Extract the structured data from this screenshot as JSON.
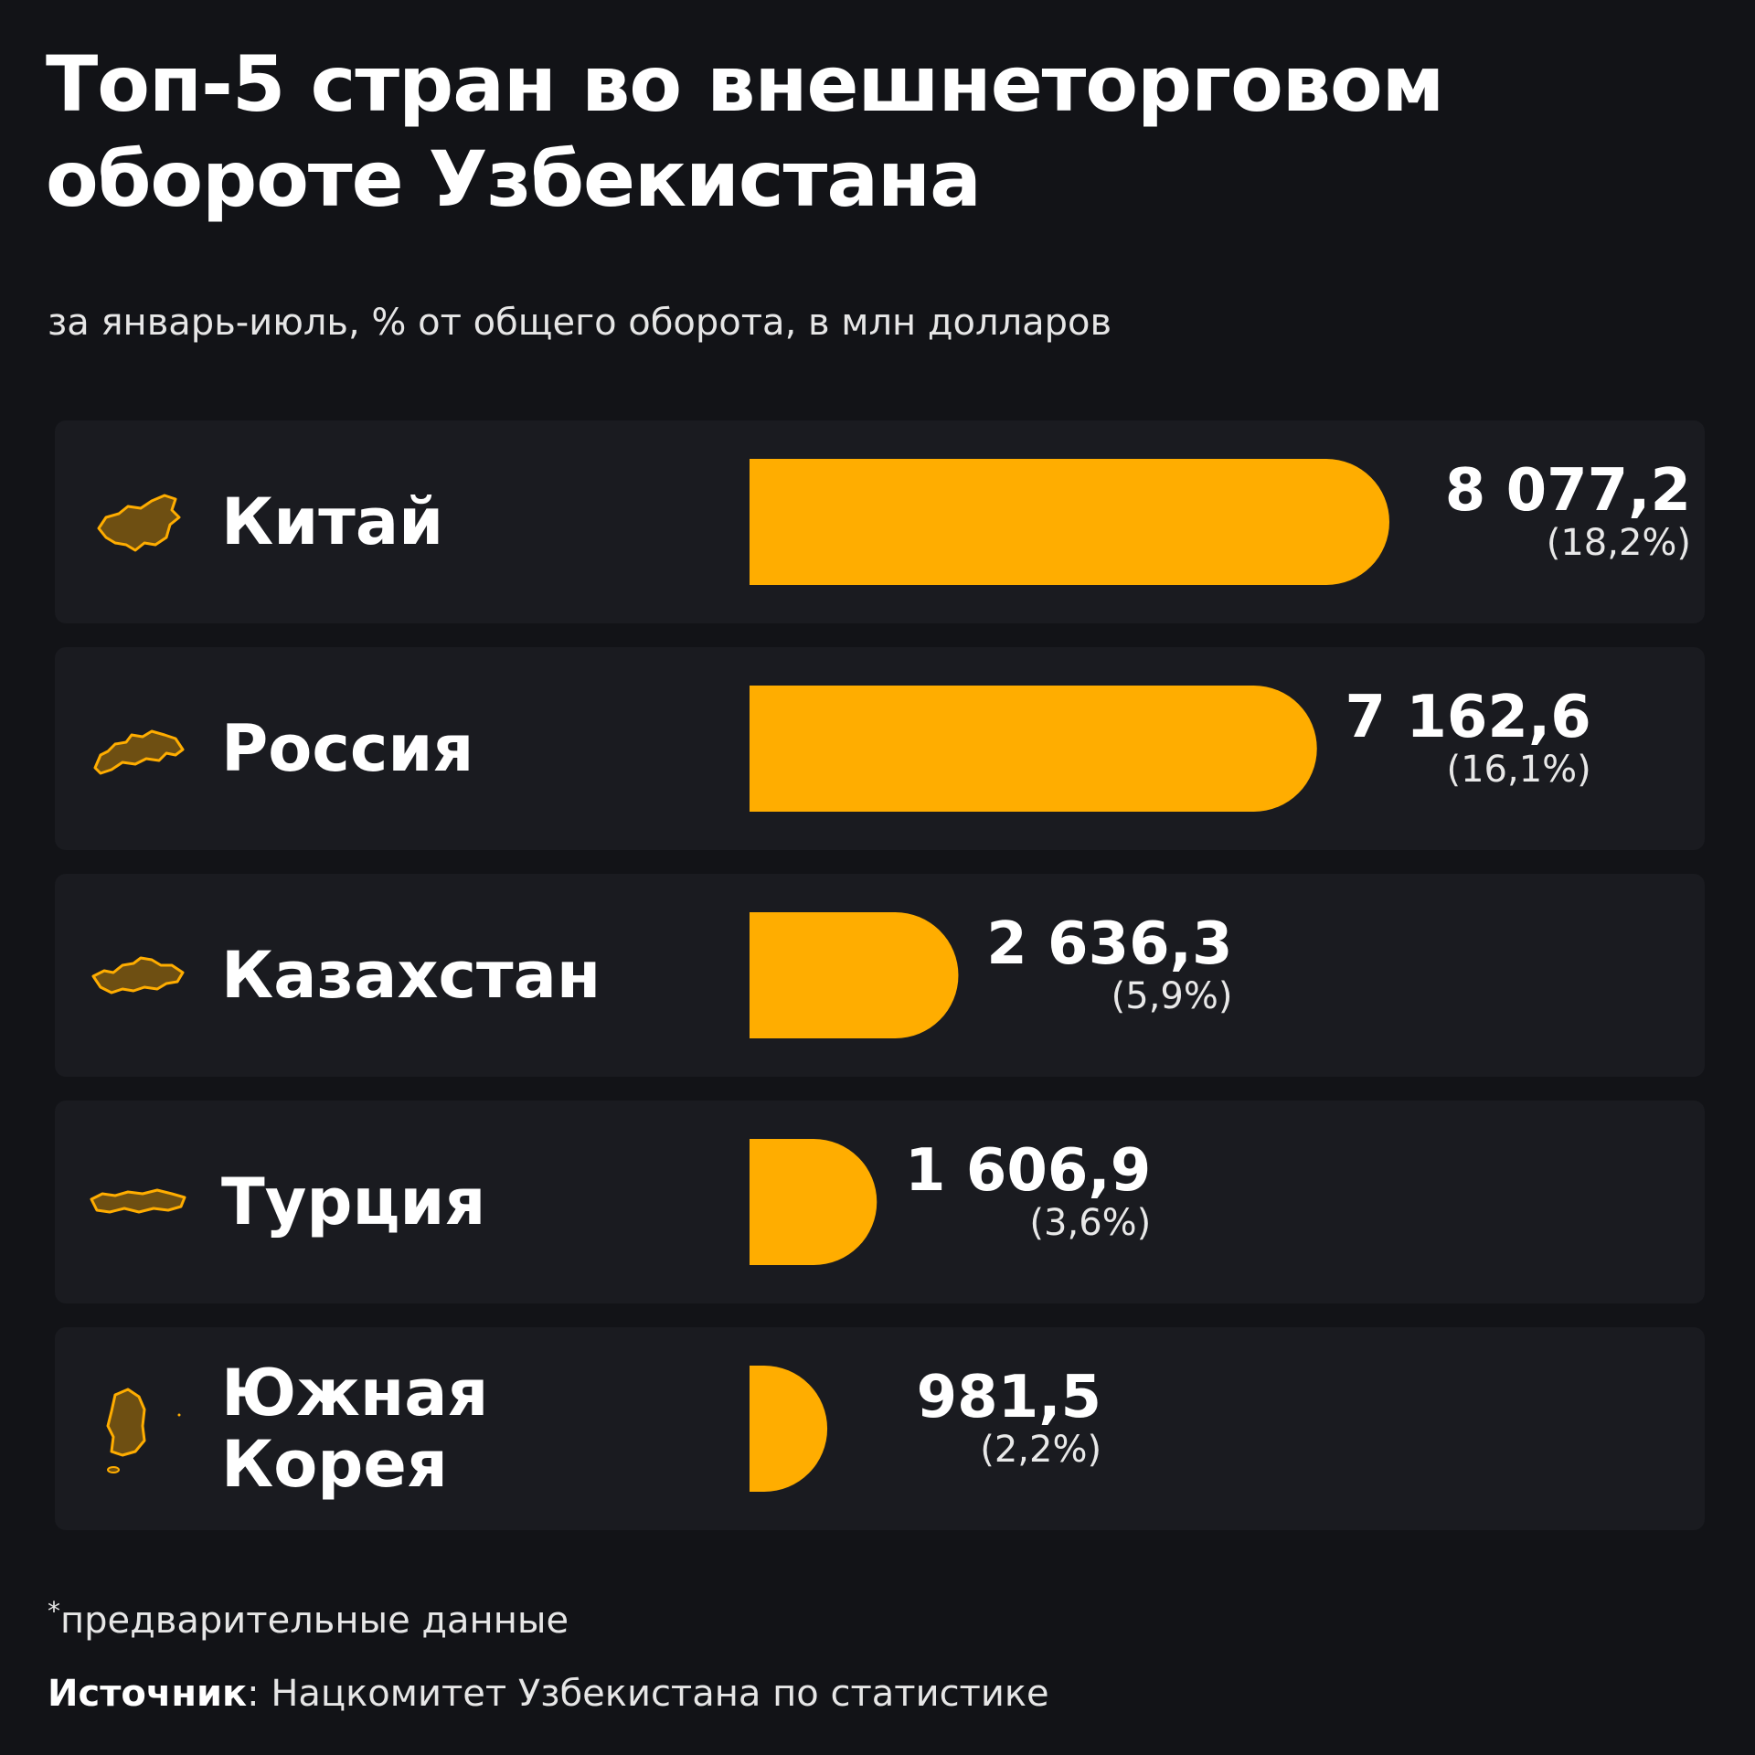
{
  "title": "Топ-5 стран во внешнеторговом обороте Узбекистана",
  "subtitle": "за январь-июль, % от общего оборота, в млн долларов",
  "footnote": {
    "mark": "*",
    "text": "предварительные данные"
  },
  "source": {
    "label": "Источник",
    "text": ": Нацкомитет Узбекистана по статистике"
  },
  "colors": {
    "background": "#121317",
    "row": "#1a1b20",
    "bar": "#ffad00",
    "map": "#6e4f12",
    "map_outline": "#ffad00"
  },
  "chart_data": {
    "type": "bar",
    "orientation": "horizontal",
    "categories": [
      "Китай",
      "Россия",
      "Казахстан",
      "Турция",
      "Южная Корея"
    ],
    "values": [
      8077.2,
      7162.6,
      2636.3,
      1606.9,
      981.5
    ],
    "shares_percent": [
      18.2,
      16.1,
      5.9,
      3.6,
      2.2
    ],
    "grid": false,
    "legend": "none"
  },
  "rows": [
    {
      "country": "Китай",
      "value_label": "8 077,2",
      "share_label": "(18,2%)",
      "icon": "china-map-icon"
    },
    {
      "country": "Россия",
      "value_label": "7 162,6",
      "share_label": "(16,1%)",
      "icon": "russia-map-icon"
    },
    {
      "country": "Казахстан",
      "value_label": "2 636,3",
      "share_label": "(5,9%)",
      "icon": "kazakhstan-map-icon"
    },
    {
      "country": "Турция",
      "value_label": "1 606,9",
      "share_label": "(3,6%)",
      "icon": "turkey-map-icon"
    },
    {
      "country": "Южная\nКорея",
      "value_label": "981,5",
      "share_label": "(2,2%)",
      "icon": "south-korea-map-icon"
    }
  ]
}
